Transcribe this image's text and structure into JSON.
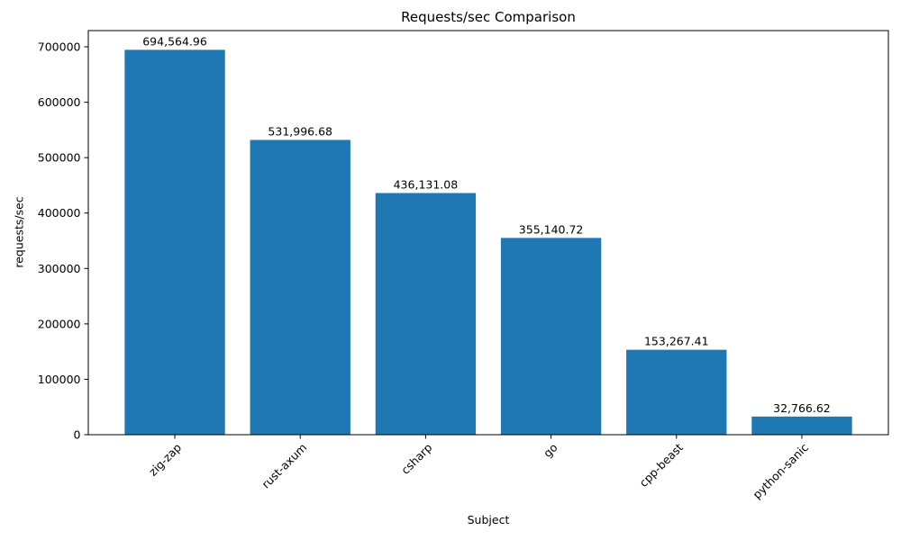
{
  "chart_data": {
    "type": "bar",
    "title": "Requests/sec Comparison",
    "xlabel": "Subject",
    "ylabel": "requests/sec",
    "categories": [
      "zig-zap",
      "rust-axum",
      "csharp",
      "go",
      "cpp-beast",
      "python-sanic"
    ],
    "values": [
      694564.96,
      531996.68,
      436131.08,
      355140.72,
      153267.41,
      32766.62
    ],
    "value_labels": [
      "694,564.96",
      "531,996.68",
      "436,131.08",
      "355,140.72",
      "153,267.41",
      "32,766.62"
    ],
    "y_ticks": [
      0,
      100000,
      200000,
      300000,
      400000,
      500000,
      600000,
      700000
    ],
    "ylim": [
      0,
      729293
    ],
    "x_tick_rotation_deg": 45,
    "grid": false,
    "legend": "none",
    "bar_color": "#1f77b4",
    "axis_color": "#000000",
    "text_color": "#000000",
    "background_color": "#ffffff"
  }
}
